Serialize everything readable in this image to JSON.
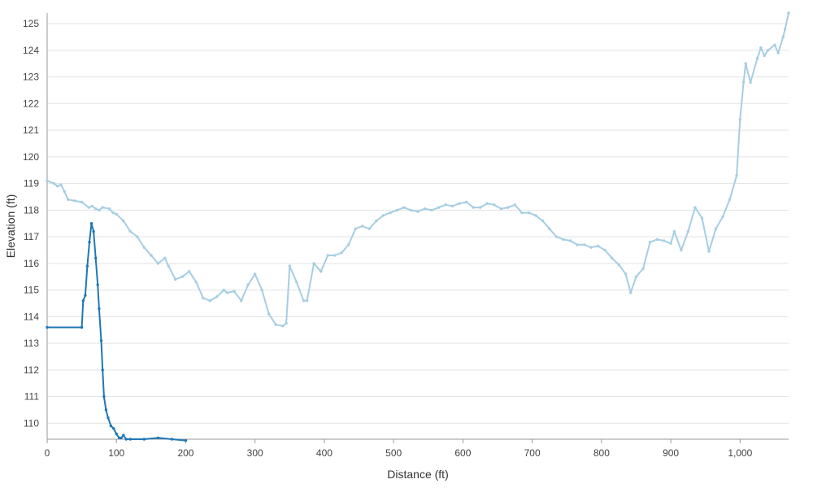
{
  "chart_data": {
    "type": "line",
    "title": "",
    "xlabel": "Distance (ft)",
    "ylabel": "Elevation (ft)",
    "xlim": [
      0,
      1070
    ],
    "ylim": [
      109.4,
      125.4
    ],
    "x_ticks": [
      0,
      100,
      200,
      300,
      400,
      500,
      600,
      700,
      800,
      900,
      1000
    ],
    "x_tick_labels": [
      "0",
      "100",
      "200",
      "300",
      "400",
      "500",
      "600",
      "700",
      "800",
      "900",
      "1,000"
    ],
    "y_ticks": [
      110,
      111,
      112,
      113,
      114,
      115,
      116,
      117,
      118,
      119,
      120,
      121,
      122,
      123,
      124,
      125
    ],
    "y_tick_labels": [
      "110",
      "111",
      "112",
      "113",
      "114",
      "115",
      "116",
      "117",
      "118",
      "119",
      "120",
      "121",
      "122",
      "123",
      "124",
      "125"
    ],
    "grid": "horizontal",
    "series": [
      {
        "color": "#a6cee3",
        "points": [
          [
            0,
            119.1
          ],
          [
            10,
            119.0
          ],
          [
            15,
            118.9
          ],
          [
            20,
            118.95
          ],
          [
            25,
            118.7
          ],
          [
            30,
            118.4
          ],
          [
            40,
            118.35
          ],
          [
            50,
            118.3
          ],
          [
            60,
            118.1
          ],
          [
            65,
            118.15
          ],
          [
            70,
            118.05
          ],
          [
            75,
            118.0
          ],
          [
            80,
            118.1
          ],
          [
            90,
            118.05
          ],
          [
            95,
            117.9
          ],
          [
            100,
            117.85
          ],
          [
            110,
            117.6
          ],
          [
            120,
            117.2
          ],
          [
            130,
            117.0
          ],
          [
            140,
            116.6
          ],
          [
            150,
            116.3
          ],
          [
            160,
            116.0
          ],
          [
            170,
            116.2
          ],
          [
            175,
            115.9
          ],
          [
            185,
            115.4
          ],
          [
            195,
            115.5
          ],
          [
            205,
            115.7
          ],
          [
            215,
            115.3
          ],
          [
            225,
            114.7
          ],
          [
            235,
            114.6
          ],
          [
            245,
            114.75
          ],
          [
            255,
            115.0
          ],
          [
            260,
            114.9
          ],
          [
            270,
            114.95
          ],
          [
            280,
            114.6
          ],
          [
            290,
            115.2
          ],
          [
            300,
            115.6
          ],
          [
            310,
            115.0
          ],
          [
            320,
            114.1
          ],
          [
            330,
            113.7
          ],
          [
            340,
            113.65
          ],
          [
            345,
            113.75
          ],
          [
            350,
            115.9
          ],
          [
            360,
            115.3
          ],
          [
            370,
            114.6
          ],
          [
            375,
            114.6
          ],
          [
            385,
            116.0
          ],
          [
            395,
            115.7
          ],
          [
            405,
            116.3
          ],
          [
            415,
            116.3
          ],
          [
            425,
            116.4
          ],
          [
            435,
            116.7
          ],
          [
            445,
            117.3
          ],
          [
            455,
            117.4
          ],
          [
            465,
            117.3
          ],
          [
            475,
            117.6
          ],
          [
            485,
            117.8
          ],
          [
            495,
            117.9
          ],
          [
            505,
            118.0
          ],
          [
            515,
            118.1
          ],
          [
            525,
            118.0
          ],
          [
            535,
            117.95
          ],
          [
            545,
            118.05
          ],
          [
            555,
            118.0
          ],
          [
            565,
            118.1
          ],
          [
            575,
            118.2
          ],
          [
            585,
            118.15
          ],
          [
            595,
            118.25
          ],
          [
            605,
            118.3
          ],
          [
            615,
            118.1
          ],
          [
            625,
            118.1
          ],
          [
            635,
            118.25
          ],
          [
            645,
            118.2
          ],
          [
            655,
            118.05
          ],
          [
            665,
            118.1
          ],
          [
            675,
            118.2
          ],
          [
            685,
            117.9
          ],
          [
            695,
            117.9
          ],
          [
            705,
            117.8
          ],
          [
            715,
            117.6
          ],
          [
            725,
            117.3
          ],
          [
            735,
            117.0
          ],
          [
            745,
            116.9
          ],
          [
            755,
            116.85
          ],
          [
            765,
            116.7
          ],
          [
            775,
            116.7
          ],
          [
            785,
            116.6
          ],
          [
            795,
            116.65
          ],
          [
            805,
            116.5
          ],
          [
            815,
            116.2
          ],
          [
            825,
            115.95
          ],
          [
            835,
            115.6
          ],
          [
            842,
            114.9
          ],
          [
            850,
            115.5
          ],
          [
            860,
            115.8
          ],
          [
            870,
            116.8
          ],
          [
            880,
            116.9
          ],
          [
            890,
            116.85
          ],
          [
            900,
            116.75
          ],
          [
            905,
            117.2
          ],
          [
            915,
            116.5
          ],
          [
            925,
            117.2
          ],
          [
            935,
            118.1
          ],
          [
            945,
            117.7
          ],
          [
            955,
            116.45
          ],
          [
            965,
            117.3
          ],
          [
            975,
            117.75
          ],
          [
            985,
            118.4
          ],
          [
            995,
            119.3
          ],
          [
            1000,
            121.4
          ],
          [
            1005,
            122.8
          ],
          [
            1008,
            123.5
          ],
          [
            1015,
            122.8
          ],
          [
            1025,
            123.7
          ],
          [
            1030,
            124.1
          ],
          [
            1035,
            123.8
          ],
          [
            1040,
            124.0
          ],
          [
            1050,
            124.2
          ],
          [
            1055,
            123.9
          ],
          [
            1062,
            124.5
          ],
          [
            1065,
            124.8
          ],
          [
            1070,
            125.4
          ]
        ]
      },
      {
        "color": "#1f78b4",
        "points": [
          [
            0,
            113.6
          ],
          [
            50,
            113.6
          ],
          [
            52,
            114.6
          ],
          [
            55,
            114.8
          ],
          [
            58,
            115.9
          ],
          [
            61,
            116.8
          ],
          [
            64,
            117.5
          ],
          [
            67,
            117.2
          ],
          [
            70,
            116.2
          ],
          [
            73,
            115.2
          ],
          [
            75,
            114.3
          ],
          [
            78,
            113.1
          ],
          [
            80,
            112.0
          ],
          [
            82,
            111.0
          ],
          [
            85,
            110.5
          ],
          [
            88,
            110.2
          ],
          [
            92,
            109.9
          ],
          [
            96,
            109.8
          ],
          [
            100,
            109.6
          ],
          [
            104,
            109.45
          ],
          [
            107,
            109.45
          ],
          [
            110,
            109.55
          ],
          [
            114,
            109.4
          ],
          [
            120,
            109.4
          ],
          [
            140,
            109.4
          ],
          [
            160,
            109.45
          ],
          [
            180,
            109.4
          ],
          [
            200,
            109.35
          ]
        ]
      }
    ]
  }
}
